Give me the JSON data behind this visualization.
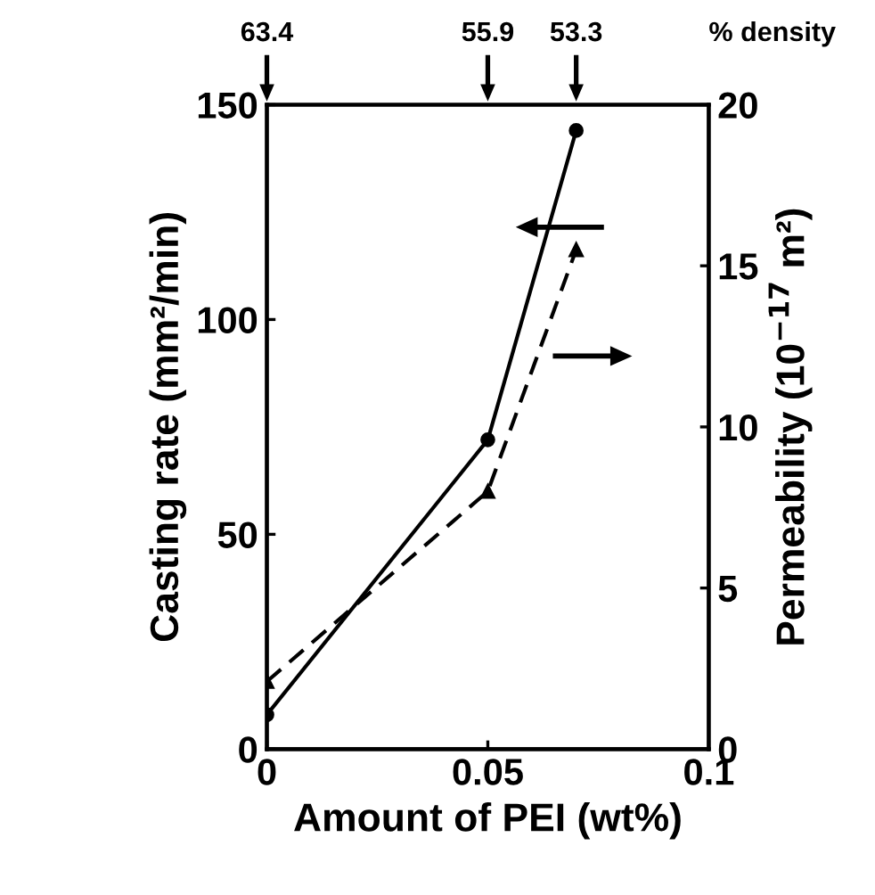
{
  "chart_data": {
    "type": "line",
    "xlabel": "Amount of PEI (wt%)",
    "ylabel": "Casting rate (mm²/min)",
    "y2label": "Permeability (10$^{−17}$ m²)",
    "annotations": [
      "63.4",
      "55.9",
      "53.3",
      "% density"
    ],
    "x": [
      0,
      0.05,
      0.07
    ],
    "series": [
      {
        "color": "#000000",
        "values": [
          8,
          72,
          144
        ],
        "marker": "circle",
        "line_style": "solid"
      },
      {
        "color": "#000000",
        "values": [
          2.1,
          8.0,
          15.5
        ],
        "marker": "triangle",
        "line_style": "dashed",
        "axis": "y2"
      }
    ],
    "xlim": [
      0,
      0.1
    ],
    "xticks": [
      0,
      0.05,
      0.1
    ],
    "ylim": [
      0,
      150
    ],
    "yticks": [
      0,
      50,
      100,
      150
    ],
    "y2lim": [
      0,
      20
    ],
    "y2ticks": [
      0,
      5,
      10,
      15,
      20
    ],
    "grid": false,
    "legend": false
  }
}
